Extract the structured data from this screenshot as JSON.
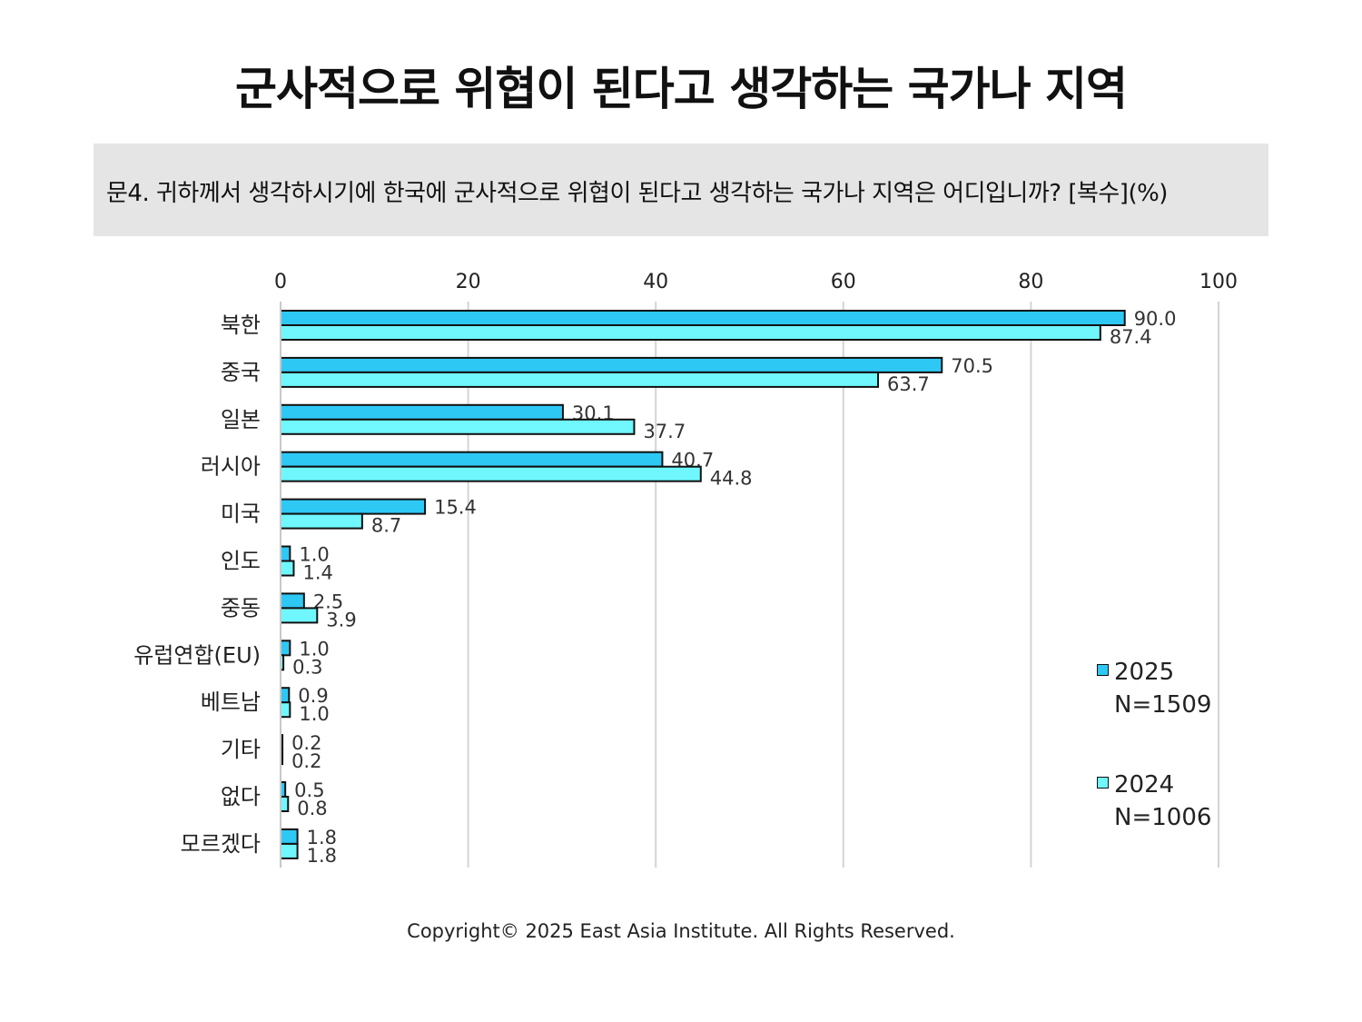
{
  "title": "군사적으로 위협이 된다고 생각하는 국가나 지역",
  "question": "문4. 귀하께서 생각하시기에 한국에 군사적으로 위협이 된다고 생각하는 국가나 지역은 어디입니까? [복수](%)",
  "legend": [
    {
      "label": "2025",
      "n": "N=1509",
      "color": "#2ec8f5"
    },
    {
      "label": "2024",
      "n": "N=1006",
      "color": "#6ff7fd"
    }
  ],
  "footer": "Copyright© 2025 East Asia Institute. All Rights Reserved.",
  "chart_data": {
    "type": "bar",
    "orientation": "horizontal",
    "categories": [
      "북한",
      "중국",
      "일본",
      "러시아",
      "미국",
      "인도",
      "중동",
      "유럽연합(EU)",
      "베트남",
      "기타",
      "없다",
      "모르겠다"
    ],
    "series": [
      {
        "name": "2025",
        "values": [
          90.0,
          70.5,
          30.1,
          40.7,
          15.4,
          1.0,
          2.5,
          1.0,
          0.9,
          0.2,
          0.5,
          1.8
        ]
      },
      {
        "name": "2024",
        "values": [
          87.4,
          63.7,
          37.7,
          44.8,
          8.7,
          1.4,
          3.9,
          0.3,
          1.0,
          0.2,
          0.8,
          1.8
        ]
      }
    ],
    "xlim": [
      0,
      100
    ],
    "xticks": [
      0,
      20,
      40,
      60,
      80,
      100
    ],
    "axis_position": "top",
    "grid": true,
    "legend_position": "bottom-right"
  }
}
